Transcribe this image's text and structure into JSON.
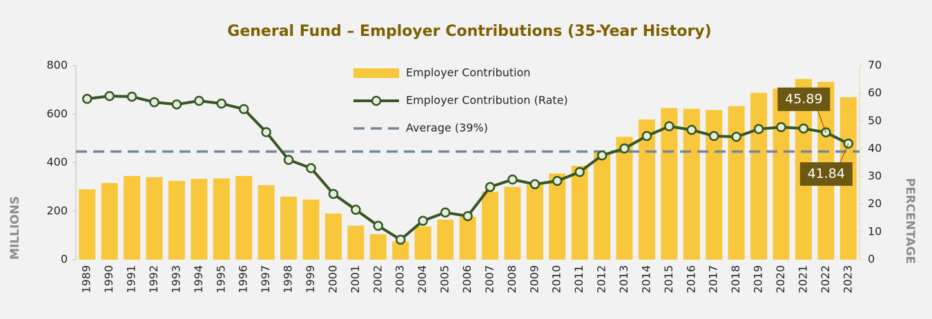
{
  "chart_data": {
    "type": "bar",
    "title": "General Fund – Employer Contributions (35-Year History)",
    "y_label": "MILLIONS",
    "y2_label": "PERCENTAGE",
    "categories": [
      "1989",
      "1990",
      "1991",
      "1992",
      "1993",
      "1994",
      "1995",
      "1996",
      "1997",
      "1998",
      "1999",
      "2000",
      "2001",
      "2002",
      "2003",
      "2004",
      "2005",
      "2006",
      "2007",
      "2008",
      "2009",
      "2010",
      "2011",
      "2012",
      "2013",
      "2014",
      "2015",
      "2016",
      "2017",
      "2018",
      "2019",
      "2020",
      "2021",
      "2022",
      "2023"
    ],
    "series": [
      {
        "name": "Employer Contribution",
        "type": "bar",
        "color": "#f9c73c",
        "axis": "y",
        "values": [
          290,
          316,
          345,
          340,
          325,
          333,
          335,
          345,
          307,
          260,
          248,
          190,
          140,
          105,
          75,
          137,
          165,
          177,
          280,
          300,
          310,
          355,
          387,
          440,
          506,
          578,
          625,
          622,
          617,
          633,
          688,
          705,
          745,
          733,
          670
        ]
      },
      {
        "name": "Employer Contribution (Rate)",
        "type": "line",
        "color": "#375623",
        "marker_fill": "#e2efda",
        "axis": "y2",
        "values": [
          58,
          59,
          58.8,
          56.8,
          56,
          57.3,
          56.3,
          54.3,
          46,
          36,
          33,
          23.7,
          18,
          12.2,
          7.2,
          14,
          17,
          15.7,
          26.2,
          28.9,
          27.2,
          28.4,
          31.6,
          37.6,
          40.1,
          44.6,
          48.1,
          46.8,
          44.6,
          44.3,
          47.1,
          47.8,
          47.3,
          45.89,
          41.84
        ],
        "value_labels": [
          null,
          null,
          null,
          null,
          null,
          null,
          null,
          null,
          null,
          null,
          null,
          null,
          null,
          null,
          null,
          null,
          null,
          null,
          null,
          null,
          null,
          null,
          null,
          null,
          null,
          null,
          null,
          null,
          null,
          null,
          null,
          null,
          null,
          "45.89",
          "41.84"
        ]
      },
      {
        "name": "Average (39%)",
        "type": "hline",
        "color": "#76869a",
        "axis": "y2",
        "dashed": true,
        "value": 39
      }
    ],
    "ylim": [
      0,
      800
    ],
    "yticks": [
      0,
      200,
      400,
      600,
      800
    ],
    "y2lim": [
      0,
      70
    ],
    "y2ticks": [
      0,
      10,
      20,
      30,
      40,
      50,
      60,
      70
    ],
    "label_color": "#6b5812"
  }
}
